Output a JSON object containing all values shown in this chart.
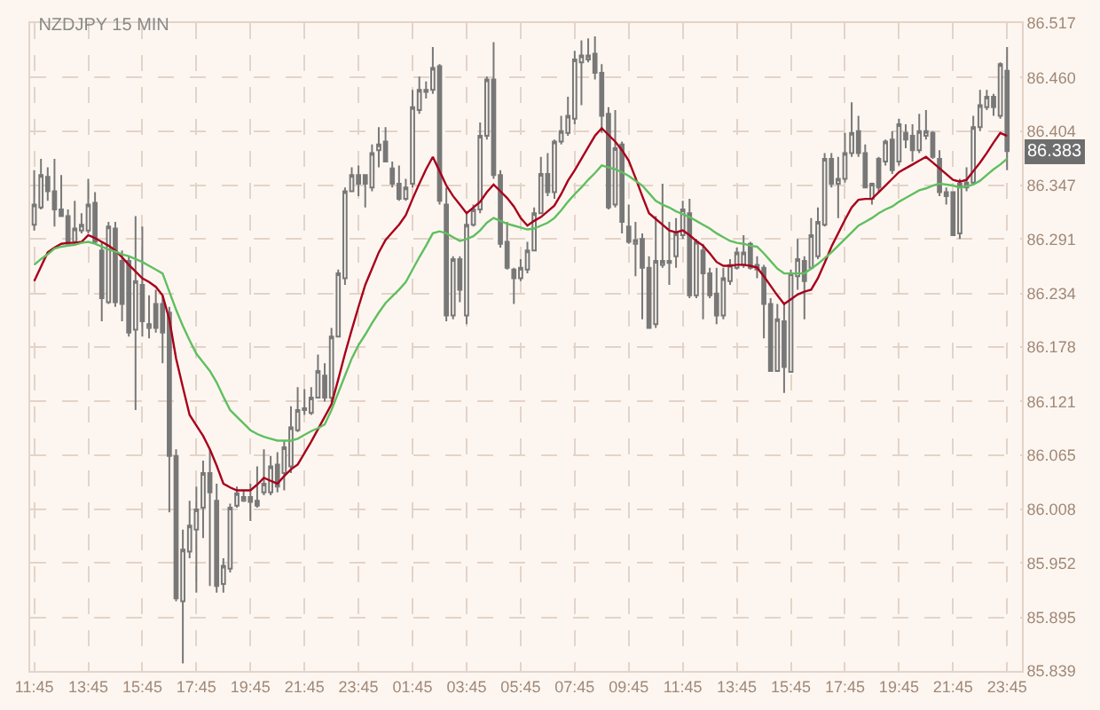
{
  "chart_data": {
    "type": "candlestick",
    "title": "NZDJPY 15 MIN",
    "categories": [
      "11:45",
      null,
      null,
      null,
      null,
      null,
      null,
      null,
      "13:45",
      null,
      null,
      null,
      null,
      null,
      null,
      null,
      "15:45",
      null,
      null,
      null,
      null,
      null,
      null,
      null,
      "17:45",
      null,
      null,
      null,
      null,
      null,
      null,
      null,
      "19:45",
      null,
      null,
      null,
      null,
      null,
      null,
      null,
      "21:45",
      null,
      null,
      null,
      null,
      null,
      null,
      null,
      "23:45",
      null,
      null,
      null,
      null,
      null,
      null,
      null,
      "01:45",
      null,
      null,
      null,
      null,
      null,
      null,
      null,
      "03:45",
      null,
      null,
      null,
      null,
      null,
      null,
      null,
      "05:45",
      null,
      null,
      null,
      null,
      null,
      null,
      null,
      "07:45",
      null,
      null,
      null,
      null,
      null,
      null,
      null,
      "09:45",
      null,
      null,
      null,
      null,
      null,
      null,
      null,
      "11:45",
      null,
      null,
      null,
      null,
      null,
      null,
      null,
      "13:45",
      null,
      null,
      null,
      null,
      null,
      null,
      null,
      "15:45",
      null,
      null,
      null,
      null,
      null,
      null,
      null,
      "17:45",
      null,
      null,
      null,
      null,
      null,
      null,
      null,
      "19:45",
      null,
      null,
      null,
      null,
      null,
      null,
      null,
      "21:45",
      null,
      null,
      null,
      null,
      null,
      null,
      null,
      "23:45"
    ],
    "ohlc": [
      [
        86.306,
        86.363,
        86.3,
        86.327
      ],
      [
        86.324,
        86.375,
        86.322,
        86.358
      ],
      [
        86.356,
        86.366,
        86.331,
        86.341
      ],
      [
        86.341,
        86.375,
        86.304,
        86.322
      ],
      [
        86.322,
        86.358,
        86.315,
        86.315
      ],
      [
        86.315,
        86.322,
        86.286,
        86.286
      ],
      [
        86.288,
        86.331,
        86.286,
        86.302
      ],
      [
        86.3,
        86.318,
        86.297,
        86.306
      ],
      [
        86.3,
        86.354,
        86.297,
        86.327
      ],
      [
        86.329,
        86.34,
        86.286,
        86.288
      ],
      [
        86.279,
        86.288,
        86.205,
        86.229
      ],
      [
        86.225,
        86.309,
        86.223,
        86.304
      ],
      [
        86.302,
        86.309,
        86.22,
        86.225
      ],
      [
        86.268,
        86.279,
        86.205,
        86.223
      ],
      [
        86.268,
        86.273,
        86.189,
        86.193
      ],
      [
        86.196,
        86.315,
        86.112,
        86.247
      ],
      [
        86.243,
        86.304,
        86.189,
        86.205
      ],
      [
        86.198,
        86.232,
        86.187,
        86.202
      ],
      [
        86.223,
        86.238,
        86.193,
        86.198
      ],
      [
        86.223,
        86.232,
        86.161,
        86.193
      ],
      [
        86.214,
        86.22,
        86.005,
        86.064
      ],
      [
        86.064,
        86.071,
        85.912,
        85.915
      ],
      [
        85.912,
        85.987,
        85.847,
        85.966
      ],
      [
        85.964,
        86.017,
        85.957,
        85.991
      ],
      [
        85.987,
        86.032,
        85.921,
        86.008
      ],
      [
        86.01,
        86.059,
        85.978,
        86.046
      ],
      [
        86.046,
        86.071,
        85.928,
        86.026
      ],
      [
        86.017,
        86.035,
        85.921,
        85.928
      ],
      [
        85.93,
        85.957,
        85.921,
        85.949
      ],
      [
        85.946,
        86.014,
        85.942,
        86.01
      ],
      [
        86.012,
        86.032,
        86.01,
        86.025
      ],
      [
        86.017,
        86.028,
        86.016,
        86.021
      ],
      [
        86.021,
        86.035,
        85.996,
        86.016
      ],
      [
        86.017,
        86.053,
        86.01,
        86.012
      ],
      [
        86.026,
        86.071,
        86.023,
        86.035
      ],
      [
        86.026,
        86.064,
        86.023,
        86.053
      ],
      [
        86.055,
        86.068,
        86.026,
        86.032
      ],
      [
        86.046,
        86.08,
        86.028,
        86.073
      ],
      [
        86.053,
        86.116,
        86.046,
        86.094
      ],
      [
        86.091,
        86.136,
        86.089,
        86.112
      ],
      [
        86.112,
        86.134,
        86.107,
        86.114
      ],
      [
        86.109,
        86.136,
        86.107,
        86.125
      ],
      [
        86.125,
        86.17,
        86.125,
        86.153
      ],
      [
        86.148,
        86.161,
        86.121,
        86.125
      ],
      [
        86.125,
        86.198,
        86.121,
        86.189
      ],
      [
        86.189,
        86.259,
        86.189,
        86.255
      ],
      [
        86.25,
        86.345,
        86.243,
        86.341
      ],
      [
        86.341,
        86.366,
        86.34,
        86.358
      ],
      [
        86.358,
        86.368,
        86.336,
        86.349
      ],
      [
        86.358,
        86.358,
        86.324,
        86.349
      ],
      [
        86.345,
        86.39,
        86.341,
        86.381
      ],
      [
        86.384,
        86.408,
        86.366,
        86.39
      ],
      [
        86.393,
        86.408,
        86.372,
        86.372
      ],
      [
        86.365,
        86.372,
        86.345,
        86.349
      ],
      [
        86.349,
        86.368,
        86.331,
        86.333
      ],
      [
        86.333,
        86.354,
        86.331,
        86.345
      ],
      [
        86.349,
        86.447,
        86.345,
        86.429
      ],
      [
        86.426,
        86.461,
        86.422,
        86.447
      ],
      [
        86.445,
        86.456,
        86.438,
        86.447
      ],
      [
        86.447,
        86.492,
        86.443,
        86.47
      ],
      [
        86.472,
        86.474,
        86.327,
        86.331
      ],
      [
        86.327,
        86.345,
        86.205,
        86.211
      ],
      [
        86.211,
        86.273,
        86.207,
        86.27
      ],
      [
        86.27,
        86.273,
        86.225,
        86.238
      ],
      [
        86.211,
        86.318,
        86.202,
        86.306
      ],
      [
        86.306,
        86.327,
        86.304,
        86.322
      ],
      [
        86.322,
        86.413,
        86.318,
        86.399
      ],
      [
        86.399,
        86.461,
        86.395,
        86.458
      ],
      [
        86.458,
        86.497,
        86.354,
        86.358
      ],
      [
        86.358,
        86.363,
        86.282,
        86.286
      ],
      [
        86.288,
        86.309,
        86.259,
        86.261
      ],
      [
        86.259,
        86.261,
        86.223,
        86.25
      ],
      [
        86.25,
        86.27,
        86.247,
        86.261
      ],
      [
        86.259,
        86.288,
        86.255,
        86.279
      ],
      [
        86.279,
        86.324,
        86.279,
        86.318
      ],
      [
        86.318,
        86.377,
        86.318,
        86.359
      ],
      [
        86.359,
        86.381,
        86.336,
        86.34
      ],
      [
        86.34,
        86.395,
        86.333,
        86.393
      ],
      [
        86.393,
        86.42,
        86.39,
        86.404
      ],
      [
        86.402,
        86.44,
        86.399,
        86.42
      ],
      [
        86.417,
        86.488,
        86.411,
        86.479
      ],
      [
        86.476,
        86.499,
        86.431,
        86.483
      ],
      [
        86.479,
        86.501,
        86.476,
        86.483
      ],
      [
        86.485,
        86.503,
        86.458,
        86.465
      ],
      [
        86.465,
        86.474,
        86.402,
        86.42
      ],
      [
        86.422,
        86.429,
        86.322,
        86.324
      ],
      [
        86.327,
        86.426,
        86.324,
        86.386
      ],
      [
        86.39,
        86.393,
        86.297,
        86.309
      ],
      [
        86.304,
        86.327,
        86.286,
        86.288
      ],
      [
        86.286,
        86.309,
        86.252,
        86.29
      ],
      [
        86.291,
        86.297,
        86.207,
        86.261
      ],
      [
        86.261,
        86.273,
        86.198,
        86.198
      ],
      [
        86.202,
        86.315,
        86.198,
        86.268
      ],
      [
        86.264,
        86.349,
        86.261,
        86.268
      ],
      [
        86.266,
        86.309,
        86.243,
        86.268
      ],
      [
        86.273,
        86.313,
        86.261,
        86.297
      ],
      [
        86.295,
        86.331,
        86.291,
        86.322
      ],
      [
        86.318,
        86.333,
        86.229,
        86.232
      ],
      [
        86.232,
        86.291,
        86.229,
        86.288
      ],
      [
        86.279,
        86.286,
        86.207,
        86.255
      ],
      [
        86.255,
        86.261,
        86.229,
        86.232
      ],
      [
        86.234,
        86.261,
        86.202,
        86.211
      ],
      [
        86.211,
        86.261,
        86.207,
        86.25
      ],
      [
        86.247,
        86.27,
        86.243,
        86.264
      ],
      [
        86.261,
        86.282,
        86.259,
        86.277
      ],
      [
        86.264,
        86.295,
        86.261,
        86.277
      ],
      [
        86.286,
        86.288,
        86.259,
        86.261
      ],
      [
        86.264,
        86.273,
        86.25,
        86.259
      ],
      [
        86.261,
        86.264,
        86.187,
        86.223
      ],
      [
        86.223,
        86.229,
        86.152,
        86.153
      ],
      [
        86.153,
        86.223,
        86.152,
        86.207
      ],
      [
        86.205,
        86.225,
        86.13,
        86.157
      ],
      [
        86.152,
        86.259,
        86.152,
        86.255
      ],
      [
        86.252,
        86.291,
        86.238,
        86.27
      ],
      [
        86.268,
        86.273,
        86.207,
        86.247
      ],
      [
        86.261,
        86.313,
        86.259,
        86.295
      ],
      [
        86.273,
        86.324,
        86.27,
        86.309
      ],
      [
        86.306,
        86.381,
        86.304,
        86.375
      ],
      [
        86.375,
        86.381,
        86.345,
        86.349
      ],
      [
        86.349,
        86.377,
        86.313,
        86.354
      ],
      [
        86.354,
        86.402,
        86.35,
        86.381
      ],
      [
        86.381,
        86.434,
        86.377,
        86.402
      ],
      [
        86.404,
        86.42,
        86.377,
        86.381
      ],
      [
        86.381,
        86.39,
        86.345,
        86.345
      ],
      [
        86.333,
        86.35,
        86.327,
        86.349
      ],
      [
        86.375,
        86.377,
        86.34,
        86.345
      ],
      [
        86.372,
        86.395,
        86.368,
        86.393
      ],
      [
        86.395,
        86.404,
        86.359,
        86.363
      ],
      [
        86.372,
        86.417,
        86.368,
        86.411
      ],
      [
        86.402,
        86.411,
        86.386,
        86.395
      ],
      [
        86.399,
        86.411,
        86.372,
        86.384
      ],
      [
        86.384,
        86.422,
        86.381,
        86.404
      ],
      [
        86.399,
        86.426,
        86.395,
        86.404
      ],
      [
        86.402,
        86.404,
        86.375,
        86.377
      ],
      [
        86.375,
        86.384,
        86.336,
        86.34
      ],
      [
        86.34,
        86.345,
        86.327,
        86.336
      ],
      [
        86.34,
        86.341,
        86.295,
        86.295
      ],
      [
        86.297,
        86.354,
        86.291,
        86.349
      ],
      [
        86.345,
        86.366,
        86.341,
        86.35
      ],
      [
        86.35,
        86.42,
        86.349,
        86.408
      ],
      [
        86.408,
        86.447,
        86.404,
        86.431
      ],
      [
        86.429,
        86.447,
        86.426,
        86.44
      ],
      [
        86.44,
        86.443,
        86.42,
        86.429
      ],
      [
        86.42,
        86.476,
        86.417,
        86.474
      ],
      [
        86.467,
        86.492,
        86.363,
        86.383
      ]
    ],
    "color": "#787878",
    "series": [
      {
        "type": "line",
        "color": "#a8001c",
        "values": [
          86.247,
          86.262,
          86.277,
          86.282,
          86.286,
          86.287,
          86.287,
          86.288,
          86.295,
          86.292,
          86.288,
          86.284,
          86.279,
          86.272,
          86.264,
          86.257,
          86.25,
          86.246,
          86.241,
          86.232,
          86.207,
          86.166,
          86.136,
          86.107,
          86.096,
          86.085,
          86.071,
          86.054,
          86.035,
          86.031,
          86.028,
          86.028,
          86.028,
          86.034,
          86.041,
          86.038,
          86.035,
          86.043,
          86.05,
          86.055,
          86.067,
          86.079,
          86.092,
          86.105,
          86.118,
          86.144,
          86.171,
          86.196,
          86.22,
          86.243,
          86.26,
          86.277,
          86.29,
          86.298,
          86.306,
          86.316,
          86.333,
          86.349,
          86.364,
          86.377,
          86.362,
          86.347,
          86.336,
          86.327,
          86.318,
          86.324,
          86.33,
          86.34,
          86.348,
          86.341,
          86.334,
          86.325,
          86.313,
          86.305,
          86.31,
          86.314,
          86.32,
          86.326,
          86.338,
          86.352,
          86.363,
          86.375,
          86.387,
          86.399,
          86.407,
          86.4,
          86.393,
          86.384,
          86.373,
          86.355,
          86.336,
          86.318,
          86.312,
          86.306,
          86.3,
          86.298,
          86.3,
          86.295,
          86.289,
          86.284,
          86.276,
          86.267,
          86.263,
          86.263,
          86.264,
          86.264,
          86.263,
          86.261,
          86.252,
          86.242,
          86.232,
          86.223,
          86.228,
          86.233,
          86.236,
          86.238,
          86.25,
          86.266,
          86.283,
          86.297,
          86.311,
          86.324,
          86.332,
          86.333,
          86.333,
          86.34,
          86.347,
          86.354,
          86.361,
          86.365,
          86.369,
          86.373,
          86.377,
          86.371,
          86.365,
          86.359,
          86.353,
          86.351,
          86.353,
          86.362,
          86.371,
          86.381,
          86.392,
          86.402,
          86.399
        ]
      },
      {
        "type": "line",
        "color": "#5fbf5f",
        "values": [
          86.264,
          86.27,
          86.275,
          86.281,
          86.283,
          86.284,
          86.285,
          86.287,
          86.288,
          86.286,
          86.283,
          86.28,
          86.278,
          86.275,
          86.273,
          86.27,
          86.267,
          86.263,
          86.259,
          86.255,
          86.236,
          86.217,
          86.2,
          86.185,
          86.171,
          86.162,
          86.153,
          86.141,
          86.126,
          86.112,
          86.105,
          86.098,
          86.091,
          86.087,
          86.084,
          86.082,
          86.08,
          86.08,
          86.08,
          86.082,
          86.086,
          86.09,
          86.093,
          86.097,
          86.112,
          86.13,
          86.148,
          86.166,
          86.18,
          86.191,
          86.203,
          86.214,
          86.224,
          86.231,
          86.238,
          86.246,
          86.259,
          86.272,
          86.284,
          86.297,
          86.299,
          86.297,
          86.293,
          86.289,
          86.291,
          86.294,
          86.3,
          86.308,
          86.313,
          86.31,
          86.307,
          86.305,
          86.303,
          86.301,
          86.302,
          86.305,
          86.308,
          86.313,
          86.321,
          86.33,
          86.338,
          86.345,
          86.353,
          86.36,
          86.368,
          86.366,
          86.364,
          86.361,
          86.357,
          86.352,
          86.347,
          86.339,
          86.331,
          86.327,
          86.324,
          86.32,
          86.317,
          86.314,
          86.31,
          86.306,
          86.302,
          86.297,
          86.293,
          86.289,
          86.287,
          86.286,
          86.284,
          86.283,
          86.276,
          86.268,
          86.26,
          86.255,
          86.255,
          86.255,
          86.255,
          86.26,
          86.265,
          86.271,
          86.277,
          86.284,
          86.291,
          86.298,
          86.305,
          86.309,
          86.313,
          86.318,
          86.322,
          86.325,
          86.33,
          86.334,
          86.338,
          86.342,
          86.344,
          86.347,
          86.349,
          86.348,
          86.347,
          86.345,
          86.346,
          86.348,
          86.352,
          86.358,
          86.364,
          86.369,
          86.375
        ]
      }
    ],
    "annotations": [
      {
        "text": "86.383",
        "y": 86.383
      }
    ],
    "ylim": [
      85.839,
      86.517
    ],
    "yticks": [
      {
        "value": 85.839,
        "label": "85.839"
      },
      {
        "value": 85.895,
        "label": "85.895"
      },
      {
        "value": 85.952,
        "label": "85.952"
      },
      {
        "value": 86.008,
        "label": "86.008"
      },
      {
        "value": 86.065,
        "label": "86.065"
      },
      {
        "value": 86.121,
        "label": "86.121"
      },
      {
        "value": 86.178,
        "label": "86.178"
      },
      {
        "value": 86.234,
        "label": "86.234"
      },
      {
        "value": 86.291,
        "label": "86.291"
      },
      {
        "value": 86.347,
        "label": "86.347"
      },
      {
        "value": 86.404,
        "label": "86.404"
      },
      {
        "value": 86.46,
        "label": "86.460"
      },
      {
        "value": 86.517,
        "label": "86.517"
      }
    ],
    "grid": true
  }
}
